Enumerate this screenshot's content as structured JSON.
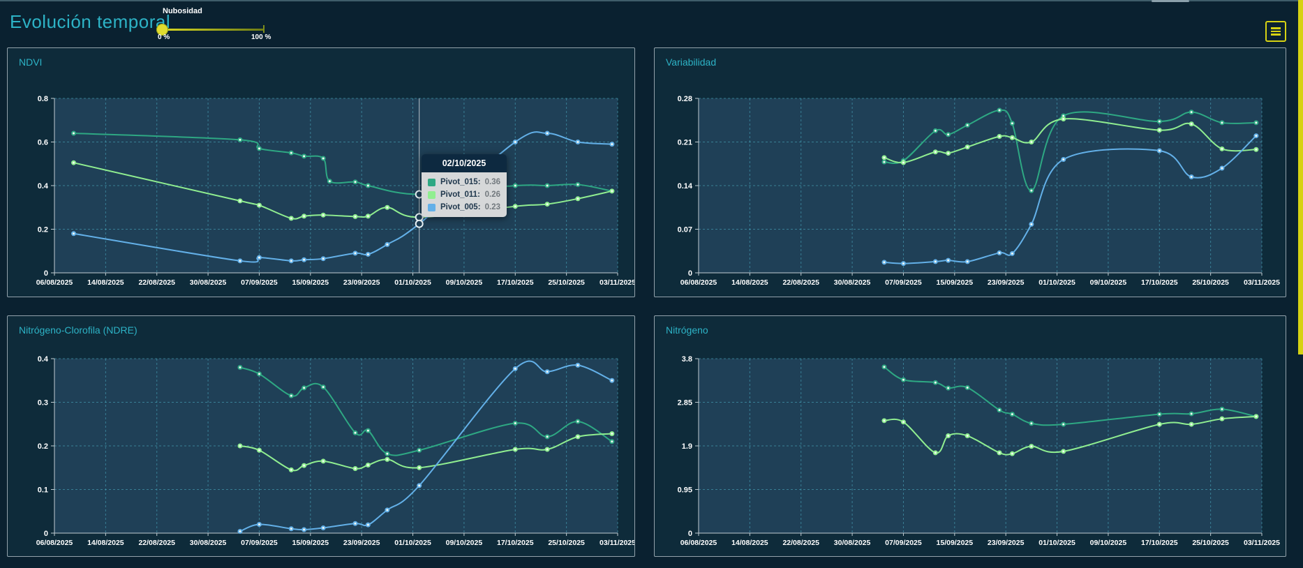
{
  "header": {
    "title": "Evolución temporal"
  },
  "cloud_slider": {
    "label": "Nubosidad",
    "min_label": "0 %",
    "max_label": "100 %",
    "value_percent": 0
  },
  "toolbar": {
    "menu_icon": "hamburger-menu"
  },
  "tooltip": {
    "date": "02/10/2025",
    "rows": [
      {
        "label": "Pivot_015:",
        "value": "0.36",
        "color": "#2ea883"
      },
      {
        "label": "Pivot_011:",
        "value": "0.26",
        "color": "#90ee90"
      },
      {
        "label": "Pivot_005:",
        "value": "0.23",
        "color": "#63b0e8"
      }
    ]
  },
  "x_tick_days": [
    0,
    8,
    16,
    24,
    32,
    40,
    48,
    56,
    64,
    72,
    80,
    89
  ],
  "chart_data": [
    {
      "id": "ndvi",
      "title": "NDVI",
      "type": "line",
      "ylim": [
        0,
        0.8
      ],
      "y_ticks": [
        "0.8",
        "0.6",
        "0.4",
        "0.2",
        "0"
      ],
      "x_tick_labels": [
        "06/08/2025",
        "14/08/2025",
        "22/08/2025",
        "30/08/2025",
        "07/09/2025",
        "15/09/2025",
        "23/09/2025",
        "01/10/2025",
        "09/10/2025",
        "17/10/2025",
        "25/10/2025",
        "03/11/2025"
      ],
      "grid": "dashed",
      "legend_position": "none",
      "highlight": {
        "day": 57,
        "date": "02/10/2025"
      },
      "series": [
        {
          "name": "Pivot_015",
          "color": "#2ea883",
          "points": [
            [
              3,
              0.64
            ],
            [
              29,
              0.61
            ],
            [
              32,
              0.57
            ],
            [
              37,
              0.55
            ],
            [
              39,
              0.535
            ],
            [
              42,
              0.525
            ],
            [
              43,
              0.42
            ],
            [
              47,
              0.417
            ],
            [
              49,
              0.4
            ],
            [
              57,
              0.36
            ],
            [
              72,
              0.4
            ],
            [
              77,
              0.4
            ],
            [
              82,
              0.405
            ],
            [
              88,
              0.375
            ]
          ]
        },
        {
          "name": "Pivot_011",
          "color": "#90ee90",
          "points": [
            [
              3,
              0.505
            ],
            [
              29,
              0.33
            ],
            [
              32,
              0.31
            ],
            [
              37,
              0.25
            ],
            [
              39,
              0.26
            ],
            [
              42,
              0.265
            ],
            [
              47,
              0.258
            ],
            [
              49,
              0.26
            ],
            [
              52,
              0.3
            ],
            [
              57,
              0.255
            ],
            [
              72,
              0.305
            ],
            [
              77,
              0.315
            ],
            [
              82,
              0.34
            ],
            [
              88,
              0.375
            ]
          ]
        },
        {
          "name": "Pivot_005",
          "color": "#63b0e8",
          "points": [
            [
              3,
              0.18
            ],
            [
              29,
              0.055
            ],
            [
              32,
              0.07
            ],
            [
              37,
              0.055
            ],
            [
              39,
              0.06
            ],
            [
              42,
              0.065
            ],
            [
              47,
              0.09
            ],
            [
              49,
              0.085
            ],
            [
              52,
              0.13
            ],
            [
              57,
              0.225
            ],
            [
              72,
              0.6
            ],
            [
              77,
              0.64
            ],
            [
              82,
              0.6
            ],
            [
              88,
              0.59
            ]
          ]
        }
      ]
    },
    {
      "id": "variabilidad",
      "title": "Variabilidad",
      "type": "line",
      "ylim": [
        0,
        0.28
      ],
      "y_ticks": [
        "0.28",
        "0.21",
        "0.14",
        "0.07",
        "0"
      ],
      "x_tick_labels": [
        "06/08/2025",
        "14/08/2025",
        "22/08/2025",
        "30/08/2025",
        "07/09/2025",
        "15/09/2025",
        "23/09/2025",
        "01/10/2025",
        "09/10/2025",
        "17/10/2025",
        "25/10/2025",
        "03/11/2025"
      ],
      "grid": "dashed",
      "legend_position": "none",
      "series": [
        {
          "name": "Pivot_015",
          "color": "#2ea883",
          "points": [
            [
              29,
              0.178
            ],
            [
              32,
              0.18
            ],
            [
              37,
              0.228
            ],
            [
              39,
              0.222
            ],
            [
              42,
              0.237
            ],
            [
              47,
              0.261
            ],
            [
              49,
              0.24
            ],
            [
              52,
              0.132
            ],
            [
              57,
              0.252
            ],
            [
              72,
              0.243
            ],
            [
              77,
              0.258
            ],
            [
              82,
              0.241
            ],
            [
              88,
              0.241
            ]
          ]
        },
        {
          "name": "Pivot_011",
          "color": "#90ee90",
          "points": [
            [
              29,
              0.185
            ],
            [
              32,
              0.177
            ],
            [
              37,
              0.194
            ],
            [
              39,
              0.192
            ],
            [
              42,
              0.202
            ],
            [
              47,
              0.219
            ],
            [
              49,
              0.217
            ],
            [
              52,
              0.21
            ],
            [
              57,
              0.247
            ],
            [
              72,
              0.229
            ],
            [
              77,
              0.239
            ],
            [
              82,
              0.199
            ],
            [
              88,
              0.198
            ]
          ]
        },
        {
          "name": "Pivot_005",
          "color": "#63b0e8",
          "points": [
            [
              29,
              0.017
            ],
            [
              32,
              0.015
            ],
            [
              37,
              0.018
            ],
            [
              39,
              0.02
            ],
            [
              42,
              0.018
            ],
            [
              47,
              0.032
            ],
            [
              49,
              0.031
            ],
            [
              52,
              0.078
            ],
            [
              57,
              0.182
            ],
            [
              72,
              0.196
            ],
            [
              77,
              0.154
            ],
            [
              82,
              0.168
            ],
            [
              88,
              0.22
            ]
          ]
        }
      ]
    },
    {
      "id": "ndre",
      "title": "Nitrógeno-Clorofila (NDRE)",
      "type": "line",
      "ylim": [
        0,
        0.4
      ],
      "y_ticks": [
        "0.4",
        "0.3",
        "0.2",
        "0.1",
        "0"
      ],
      "x_tick_labels": [
        "06/08/2025",
        "14/08/2025",
        "22/08/2025",
        "30/08/2025",
        "07/09/2025",
        "15/09/2025",
        "23/09/2025",
        "01/10/2025",
        "09/10/2025",
        "17/10/2025",
        "25/10/2025",
        "03/11/2025"
      ],
      "grid": "dashed",
      "legend_position": "none",
      "series": [
        {
          "name": "Pivot_015",
          "color": "#2ea883",
          "points": [
            [
              29,
              0.38
            ],
            [
              32,
              0.365
            ],
            [
              37,
              0.315
            ],
            [
              39,
              0.333
            ],
            [
              42,
              0.335
            ],
            [
              47,
              0.23
            ],
            [
              49,
              0.235
            ],
            [
              52,
              0.182
            ],
            [
              57,
              0.19
            ],
            [
              72,
              0.252
            ],
            [
              77,
              0.221
            ],
            [
              82,
              0.256
            ],
            [
              88,
              0.21
            ]
          ]
        },
        {
          "name": "Pivot_011",
          "color": "#90ee90",
          "points": [
            [
              29,
              0.2
            ],
            [
              32,
              0.19
            ],
            [
              37,
              0.145
            ],
            [
              39,
              0.155
            ],
            [
              42,
              0.165
            ],
            [
              47,
              0.148
            ],
            [
              49,
              0.156
            ],
            [
              52,
              0.169
            ],
            [
              57,
              0.15
            ],
            [
              72,
              0.192
            ],
            [
              77,
              0.192
            ],
            [
              82,
              0.221
            ],
            [
              88,
              0.228
            ]
          ]
        },
        {
          "name": "Pivot_005",
          "color": "#63b0e8",
          "points": [
            [
              29,
              0.004
            ],
            [
              32,
              0.02
            ],
            [
              37,
              0.01
            ],
            [
              39,
              0.008
            ],
            [
              42,
              0.012
            ],
            [
              47,
              0.022
            ],
            [
              49,
              0.019
            ],
            [
              52,
              0.053
            ],
            [
              57,
              0.109
            ],
            [
              72,
              0.377
            ],
            [
              77,
              0.37
            ],
            [
              82,
              0.385
            ],
            [
              88,
              0.35
            ]
          ]
        }
      ]
    },
    {
      "id": "nitrogeno",
      "title": "Nitrógeno",
      "type": "line",
      "ylim": [
        0,
        3.8
      ],
      "y_ticks": [
        "3.8",
        "2.85",
        "1.9",
        "0.95",
        "0"
      ],
      "x_tick_labels": [
        "06/08/2025",
        "14/08/2025",
        "22/08/2025",
        "30/08/2025",
        "07/09/2025",
        "15/09/2025",
        "23/09/2025",
        "01/10/2025",
        "09/10/2025",
        "17/10/2025",
        "25/10/2025",
        "03/11/2025"
      ],
      "grid": "dashed",
      "legend_position": "none",
      "series": [
        {
          "name": "Pivot_015",
          "color": "#2ea883",
          "points": [
            [
              29,
              3.62
            ],
            [
              32,
              3.34
            ],
            [
              37,
              3.28
            ],
            [
              39,
              3.16
            ],
            [
              42,
              3.17
            ],
            [
              47,
              2.68
            ],
            [
              49,
              2.59
            ],
            [
              52,
              2.39
            ],
            [
              57,
              2.37
            ],
            [
              72,
              2.59
            ],
            [
              77,
              2.6
            ],
            [
              82,
              2.7
            ],
            [
              88,
              2.54
            ]
          ]
        },
        {
          "name": "Pivot_011",
          "color": "#90ee90",
          "points": [
            [
              29,
              2.45
            ],
            [
              32,
              2.42
            ],
            [
              37,
              1.75
            ],
            [
              39,
              2.12
            ],
            [
              42,
              2.12
            ],
            [
              47,
              1.75
            ],
            [
              49,
              1.73
            ],
            [
              52,
              1.89
            ],
            [
              57,
              1.78
            ],
            [
              72,
              2.37
            ],
            [
              77,
              2.37
            ],
            [
              82,
              2.49
            ],
            [
              88,
              2.54
            ]
          ]
        }
      ]
    }
  ]
}
